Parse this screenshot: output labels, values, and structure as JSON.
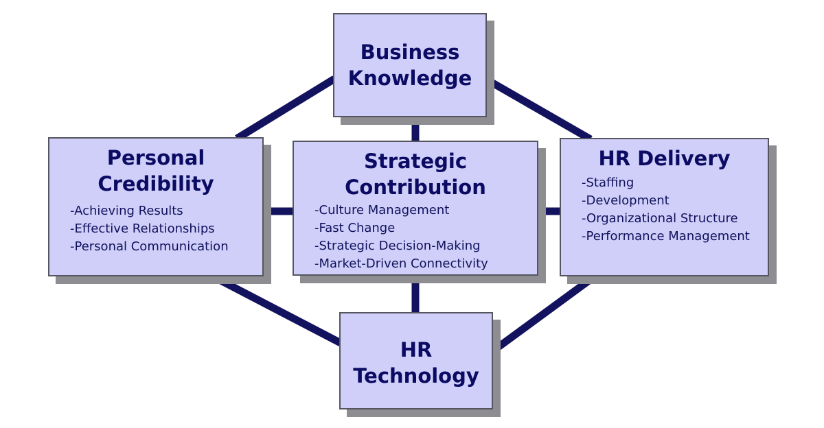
{
  "diagram": {
    "line_color": "#12125e",
    "box_fill": "#cfcff9",
    "text_color": "#0b0b64",
    "nodes": {
      "business_knowledge": {
        "title": [
          "Business",
          "Knowledge"
        ]
      },
      "personal_credibility": {
        "title": [
          "Personal",
          "Credibility"
        ],
        "items": [
          "-Achieving Results",
          "-Effective Relationships",
          "-Personal Communication"
        ]
      },
      "strategic_contribution": {
        "title": [
          "Strategic",
          "Contribution"
        ],
        "items": [
          "-Culture Management",
          "-Fast Change",
          "-Strategic Decision-Making",
          "-Market-Driven Connectivity"
        ]
      },
      "hr_delivery": {
        "title": [
          "HR Delivery"
        ],
        "items": [
          "-Staffing",
          "-Development",
          "-Organizational Structure",
          "-Performance Management"
        ]
      },
      "hr_technology": {
        "title": [
          "HR",
          "Technology"
        ]
      }
    },
    "connections": [
      {
        "from": "business_knowledge",
        "to": "personal_credibility"
      },
      {
        "from": "business_knowledge",
        "to": "hr_delivery"
      },
      {
        "from": "business_knowledge",
        "to": "strategic_contribution"
      },
      {
        "from": "personal_credibility",
        "to": "strategic_contribution"
      },
      {
        "from": "strategic_contribution",
        "to": "hr_delivery"
      },
      {
        "from": "strategic_contribution",
        "to": "hr_technology"
      },
      {
        "from": "personal_credibility",
        "to": "hr_technology"
      },
      {
        "from": "hr_delivery",
        "to": "hr_technology"
      }
    ]
  }
}
